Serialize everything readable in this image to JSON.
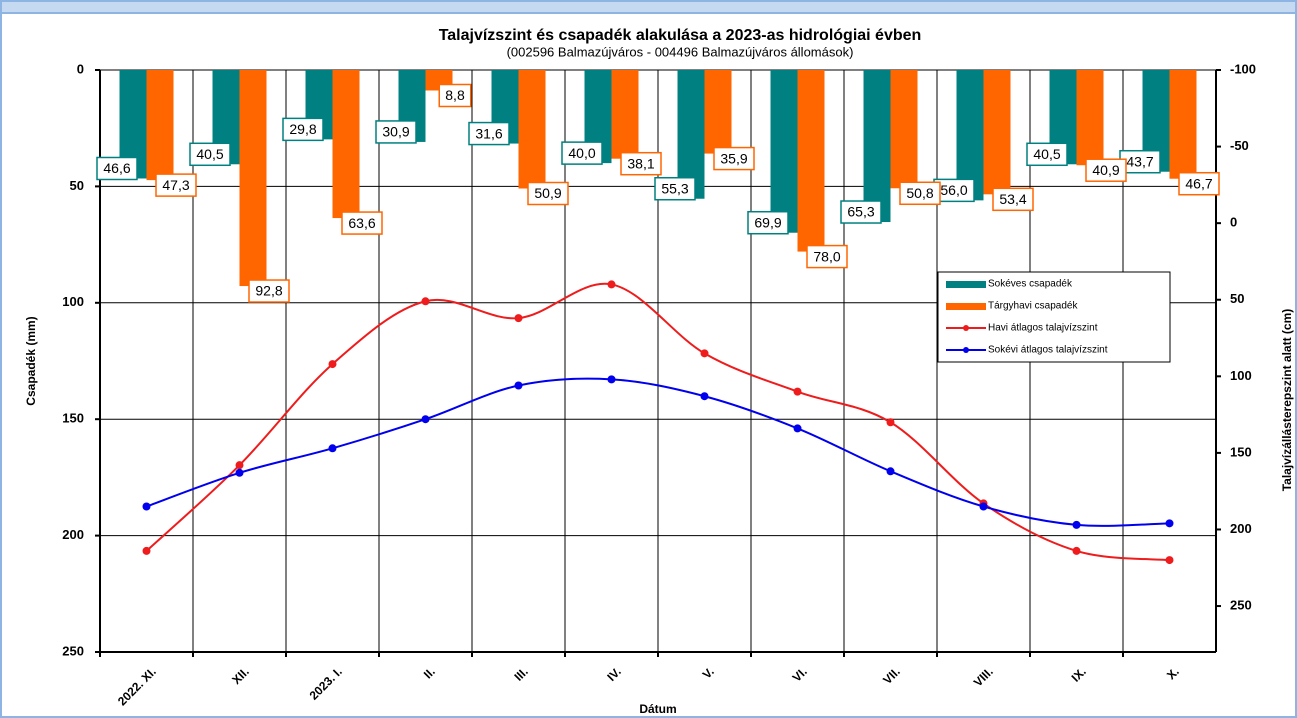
{
  "chart_data": {
    "type": "bar",
    "title": "Talajvízszint és csapadék alakulása a 2023-as hidrológiai évben",
    "subtitle": "(002596  Balmazújváros  - 004496  Balmazújváros  állomások)",
    "x_label": "Dátum",
    "y_label": "Csapadék (mm)",
    "y2_label": "Talajvízállásterepszint alatt (cm)",
    "categories": [
      "2022. XI.",
      "XII.",
      "2023. I.",
      "II.",
      "III.",
      "IV.",
      "V.",
      "VI.",
      "VII.",
      "VIII.",
      "IX.",
      "X."
    ],
    "ylim": [
      0,
      250
    ],
    "yticks": [
      0,
      50,
      100,
      150,
      200,
      250
    ],
    "y_inverted": true,
    "y2lim": [
      -100,
      280
    ],
    "y2ticks": [
      -100,
      -50,
      0,
      50,
      100,
      150,
      200,
      250
    ],
    "y2_inverted": true,
    "grid": true,
    "series": [
      {
        "name": "Sokéves csapadék",
        "type": "bar",
        "color": "#008080",
        "values": [
          46.6,
          40.5,
          29.8,
          30.9,
          31.6,
          40.0,
          55.3,
          69.9,
          65.3,
          56.0,
          40.5,
          43.7
        ],
        "value_labels": [
          "46,6",
          "40,5",
          "29,8",
          "30,9",
          "31,6",
          "40,0",
          "55,3",
          "69,9",
          "65,3",
          "56,0",
          "40,5",
          "43,7"
        ]
      },
      {
        "name": "Tárgyhavi csapadék",
        "type": "bar",
        "color": "#ff6600",
        "values": [
          47.3,
          92.8,
          63.6,
          8.8,
          50.9,
          38.1,
          35.9,
          78.0,
          50.8,
          53.4,
          40.9,
          46.7
        ],
        "value_labels": [
          "47,3",
          "92,8",
          "63,6",
          "8,8",
          "50,9",
          "38,1",
          "35,9",
          "78,0",
          "50,8",
          "53,4",
          "40,9",
          "46,7"
        ]
      },
      {
        "name": "Havi átlagos talajvízszint",
        "type": "line",
        "axis": "y2",
        "color": "#ee1c1c",
        "values": [
          214,
          158,
          92,
          51,
          62,
          40,
          85,
          110,
          130,
          183,
          214,
          220
        ]
      },
      {
        "name": "Sokévi átlagos talajvízszint",
        "type": "line",
        "axis": "y2",
        "color": "#0000ee",
        "values": [
          185,
          163,
          147,
          128,
          106,
          102,
          113,
          134,
          162,
          185,
          197,
          196
        ]
      }
    ]
  }
}
